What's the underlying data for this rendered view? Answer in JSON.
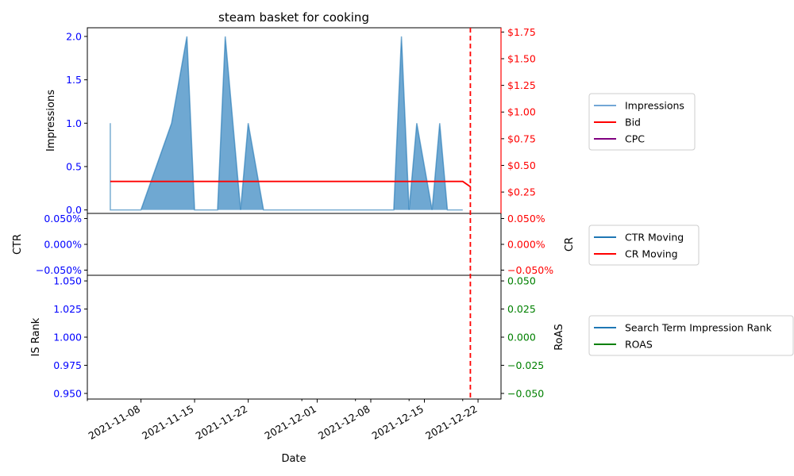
{
  "chart_data": [
    {
      "type": "area",
      "title": "steam basket for cooking",
      "xlabel": "",
      "ylabel": "Impressions",
      "y2label": "",
      "ylim": [
        -0.04,
        2.1
      ],
      "y2lim": [
        0.05,
        1.79
      ],
      "y_ticks": [
        0.0,
        0.5,
        1.0,
        1.5,
        2.0
      ],
      "y_tick_labels": [
        "0.0",
        "0.5",
        "1.0",
        "1.5",
        "2.0"
      ],
      "y2_ticks": [
        0.25,
        0.5,
        0.75,
        1.0,
        1.25,
        1.5,
        1.75
      ],
      "y2_tick_labels": [
        "$0.25",
        "$0.50",
        "$0.75",
        "$1.00",
        "$1.25",
        "$1.50",
        "$1.75"
      ],
      "y_color": "#0000ff",
      "y2_color": "#ff0000",
      "legend": [
        "Impressions",
        "Bid",
        "CPC"
      ],
      "legend_colors": [
        "#72a7d6",
        "#ff0000",
        "#800080"
      ],
      "legend_placement": "right",
      "series": [
        {
          "name": "Impressions",
          "axis": "left",
          "color": "#1f77b4",
          "fill": "#6fa8d2",
          "points": [
            [
              "2021-11-04",
              1
            ],
            [
              "2021-11-04",
              0
            ],
            [
              "2021-11-05",
              0
            ],
            [
              "2021-11-08",
              0
            ],
            [
              "2021-11-12",
              1
            ],
            [
              "2021-11-14",
              2
            ],
            [
              "2021-11-15",
              0
            ],
            [
              "2021-11-18",
              0
            ],
            [
              "2021-11-19",
              2
            ],
            [
              "2021-11-21",
              0
            ],
            [
              "2021-11-22",
              1
            ],
            [
              "2021-11-24",
              0
            ],
            [
              "2021-12-11",
              0
            ],
            [
              "2021-12-12",
              2
            ],
            [
              "2021-12-13",
              0
            ],
            [
              "2021-12-14",
              1
            ],
            [
              "2021-12-16",
              0
            ],
            [
              "2021-12-17",
              1
            ],
            [
              "2021-12-18",
              0
            ],
            [
              "2021-12-20",
              0
            ]
          ]
        },
        {
          "name": "Bid",
          "axis": "right",
          "color": "#ff0000",
          "points": [
            [
              "2021-11-04",
              0.35
            ],
            [
              "2021-12-20",
              0.35
            ],
            [
              "2021-12-21",
              0.3
            ]
          ]
        },
        {
          "name": "CPC",
          "axis": "right",
          "color": "#800080",
          "points": []
        }
      ],
      "vline": {
        "x": "2021-12-21",
        "color": "#ff0000",
        "style": "dashed"
      }
    },
    {
      "type": "line",
      "ylabel": "CTR",
      "y2label": "CR",
      "ylim": [
        -0.06,
        0.06
      ],
      "y_ticks": [
        -0.05,
        0.0,
        0.05
      ],
      "y_tick_labels": [
        "−0.050%",
        "0.000%",
        "0.050%"
      ],
      "y2_tick_labels": [
        "−0.050%",
        "0.000%",
        "0.050%"
      ],
      "y_color": "#0000ff",
      "y2_color": "#ff0000",
      "legend": [
        "CTR Moving",
        "CR Moving"
      ],
      "legend_colors": [
        "#1f77b4",
        "#ff0000"
      ],
      "series": [
        {
          "name": "CTR Moving",
          "color": "#1f77b4",
          "points": []
        },
        {
          "name": "CR Moving",
          "color": "#ff0000",
          "points": []
        }
      ]
    },
    {
      "type": "line",
      "xlabel": "Date",
      "ylabel": "IS Rank",
      "y2label": "RoAS",
      "ylim": [
        0.945,
        1.055
      ],
      "y_ticks": [
        0.95,
        0.975,
        1.0,
        1.025,
        1.05
      ],
      "y_tick_labels": [
        "0.950",
        "0.975",
        "1.000",
        "1.025",
        "1.050"
      ],
      "y2lim": [
        -0.055,
        0.055
      ],
      "y2_ticks": [
        -0.05,
        -0.025,
        0.0,
        0.025,
        0.05
      ],
      "y2_tick_labels": [
        "−0.050",
        "−0.025",
        "0.000",
        "0.025",
        "0.050"
      ],
      "y_color": "#0000ff",
      "y2_color": "#008000",
      "legend": [
        "Search Term Impression Rank",
        "ROAS"
      ],
      "legend_colors": [
        "#1f77b4",
        "#008000"
      ],
      "series": [
        {
          "name": "Search Term Impression Rank",
          "color": "#1f77b4",
          "points": []
        },
        {
          "name": "ROAS",
          "color": "#008000",
          "points": []
        }
      ]
    }
  ],
  "x_axis": {
    "xlim": [
      "2021-11-01",
      "2021-12-25"
    ],
    "ticks": [
      "2021-11-08",
      "2021-11-15",
      "2021-11-22",
      "2021-12-01",
      "2021-12-08",
      "2021-12-15",
      "2021-12-22"
    ],
    "minor_ticks": [
      "2021-11-01",
      "2021-11-29",
      "2021-12-06",
      "2021-12-13",
      "2021-12-20"
    ]
  }
}
